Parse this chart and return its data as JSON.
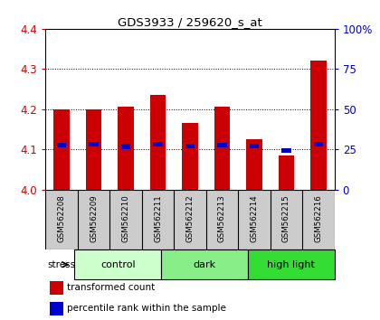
{
  "title": "GDS3933 / 259620_s_at",
  "samples": [
    "GSM562208",
    "GSM562209",
    "GSM562210",
    "GSM562211",
    "GSM562212",
    "GSM562213",
    "GSM562214",
    "GSM562215",
    "GSM562216"
  ],
  "bar_values": [
    4.2,
    4.2,
    4.205,
    4.235,
    4.165,
    4.205,
    4.125,
    4.085,
    4.32
  ],
  "percentile_values": [
    4.11,
    4.113,
    4.107,
    4.113,
    4.108,
    4.11,
    4.108,
    4.097,
    4.112
  ],
  "bar_bottom": 4.0,
  "ylim": [
    4.0,
    4.4
  ],
  "y2lim": [
    0,
    100
  ],
  "yticks": [
    4.0,
    4.1,
    4.2,
    4.3,
    4.4
  ],
  "y2ticks": [
    0,
    25,
    50,
    75,
    100
  ],
  "groups": [
    {
      "label": "control",
      "start": 0,
      "end": 3,
      "color": "#ccffcc"
    },
    {
      "label": "dark",
      "start": 3,
      "end": 6,
      "color": "#88ee88"
    },
    {
      "label": "high light",
      "start": 6,
      "end": 9,
      "color": "#33dd33"
    }
  ],
  "bar_color": "#cc0000",
  "percentile_color": "#0000cc",
  "bar_width": 0.5,
  "tick_label_color_left": "#cc0000",
  "tick_label_color_right": "#0000cc",
  "label_area_color": "#cccccc",
  "legend_items": [
    "transformed count",
    "percentile rank within the sample"
  ],
  "legend_colors": [
    "#cc0000",
    "#0000cc"
  ]
}
